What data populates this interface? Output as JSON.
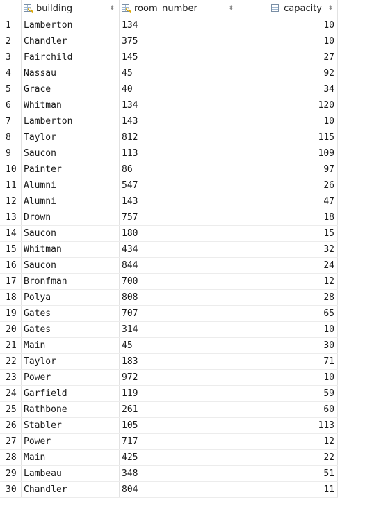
{
  "columns": [
    {
      "label": "building",
      "icon": "primary-key-column-icon"
    },
    {
      "label": "room_number",
      "icon": "primary-key-column-icon"
    },
    {
      "label": "capacity",
      "icon": "column-icon"
    }
  ],
  "sort_glyph": "⬍",
  "rows": [
    {
      "n": "1",
      "building": "Lamberton",
      "room_number": "134",
      "capacity": "10"
    },
    {
      "n": "2",
      "building": "Chandler",
      "room_number": "375",
      "capacity": "10"
    },
    {
      "n": "3",
      "building": "Fairchild",
      "room_number": "145",
      "capacity": "27"
    },
    {
      "n": "4",
      "building": "Nassau",
      "room_number": "45",
      "capacity": "92"
    },
    {
      "n": "5",
      "building": "Grace",
      "room_number": "40",
      "capacity": "34"
    },
    {
      "n": "6",
      "building": "Whitman",
      "room_number": "134",
      "capacity": "120"
    },
    {
      "n": "7",
      "building": "Lamberton",
      "room_number": "143",
      "capacity": "10"
    },
    {
      "n": "8",
      "building": "Taylor",
      "room_number": "812",
      "capacity": "115"
    },
    {
      "n": "9",
      "building": "Saucon",
      "room_number": "113",
      "capacity": "109"
    },
    {
      "n": "10",
      "building": "Painter",
      "room_number": "86",
      "capacity": "97"
    },
    {
      "n": "11",
      "building": "Alumni",
      "room_number": "547",
      "capacity": "26"
    },
    {
      "n": "12",
      "building": "Alumni",
      "room_number": "143",
      "capacity": "47"
    },
    {
      "n": "13",
      "building": "Drown",
      "room_number": "757",
      "capacity": "18"
    },
    {
      "n": "14",
      "building": "Saucon",
      "room_number": "180",
      "capacity": "15"
    },
    {
      "n": "15",
      "building": "Whitman",
      "room_number": "434",
      "capacity": "32"
    },
    {
      "n": "16",
      "building": "Saucon",
      "room_number": "844",
      "capacity": "24"
    },
    {
      "n": "17",
      "building": "Bronfman",
      "room_number": "700",
      "capacity": "12"
    },
    {
      "n": "18",
      "building": "Polya",
      "room_number": "808",
      "capacity": "28"
    },
    {
      "n": "19",
      "building": "Gates",
      "room_number": "707",
      "capacity": "65"
    },
    {
      "n": "20",
      "building": "Gates",
      "room_number": "314",
      "capacity": "10"
    },
    {
      "n": "21",
      "building": "Main",
      "room_number": "45",
      "capacity": "30"
    },
    {
      "n": "22",
      "building": "Taylor",
      "room_number": "183",
      "capacity": "71"
    },
    {
      "n": "23",
      "building": "Power",
      "room_number": "972",
      "capacity": "10"
    },
    {
      "n": "24",
      "building": "Garfield",
      "room_number": "119",
      "capacity": "59"
    },
    {
      "n": "25",
      "building": "Rathbone",
      "room_number": "261",
      "capacity": "60"
    },
    {
      "n": "26",
      "building": "Stabler",
      "room_number": "105",
      "capacity": "113"
    },
    {
      "n": "27",
      "building": "Power",
      "room_number": "717",
      "capacity": "12"
    },
    {
      "n": "28",
      "building": "Main",
      "room_number": "425",
      "capacity": "22"
    },
    {
      "n": "29",
      "building": "Lambeau",
      "room_number": "348",
      "capacity": "51"
    },
    {
      "n": "30",
      "building": "Chandler",
      "room_number": "804",
      "capacity": "11"
    }
  ]
}
